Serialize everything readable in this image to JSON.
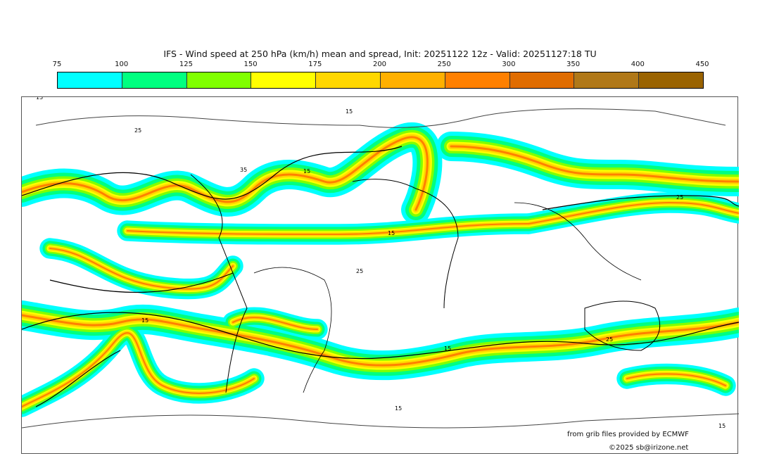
{
  "title": "IFS - Wind speed at 250 hPa (km/h) mean and spread, Init: 20251122 12z - Valid: 20251127:18 TU",
  "colorbar": {
    "ticks": [
      "75",
      "100",
      "125",
      "150",
      "175",
      "200",
      "250",
      "300",
      "350",
      "400",
      "450"
    ],
    "colors": [
      "#00ffff",
      "#00ff80",
      "#80ff00",
      "#ffff00",
      "#ffd700",
      "#ffb000",
      "#ff8000",
      "#e06c00",
      "#b07818",
      "#9a6300"
    ]
  },
  "contour_labels": [
    "15",
    "25",
    "35",
    "15",
    "25",
    "15",
    "15",
    "25",
    "15",
    "15",
    "25",
    "15",
    "15"
  ],
  "credits": {
    "source": "from grib files provided by ECMWF",
    "copyright": "©2025 sb@irizone.net"
  }
}
